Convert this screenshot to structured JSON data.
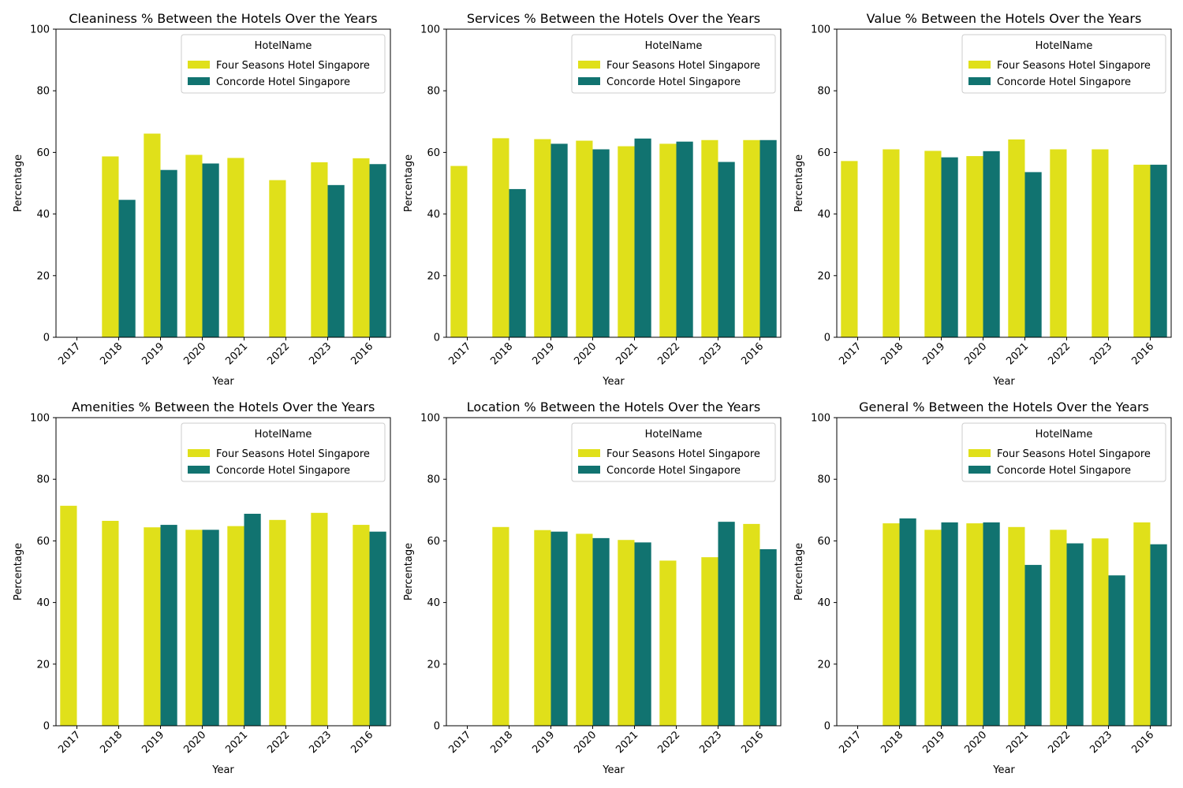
{
  "colors": {
    "four_seasons": "#e0e01a",
    "concorde": "#117370",
    "axis": "#000000",
    "legend_border": "#cccccc"
  },
  "chart_data": [
    {
      "type": "bar",
      "title": "Cleaniness % Between the Hotels Over the Years",
      "xlabel": "Year",
      "ylabel": "Percentage",
      "ylim": [
        0,
        100
      ],
      "yticks": [
        "0",
        "20",
        "40",
        "60",
        "80",
        "100"
      ],
      "categories": [
        "2017",
        "2018",
        "2019",
        "2020",
        "2021",
        "2022",
        "2023",
        "2016"
      ],
      "legend_title": "HotelName",
      "legend_position": "upper right",
      "grid": false,
      "series": [
        {
          "name": "Four Seasons Hotel Singapore",
          "color": "#e0e01a",
          "values": [
            null,
            58.7,
            66.1,
            59.2,
            58.2,
            51.0,
            56.8,
            58.1
          ]
        },
        {
          "name": "Concorde Hotel Singapore",
          "color": "#117370",
          "values": [
            null,
            44.6,
            54.3,
            56.4,
            null,
            null,
            49.4,
            56.2
          ]
        }
      ]
    },
    {
      "type": "bar",
      "title": "Services % Between the Hotels Over the Years",
      "xlabel": "Year",
      "ylabel": "Percentage",
      "ylim": [
        0,
        100
      ],
      "yticks": [
        "0",
        "20",
        "40",
        "60",
        "80",
        "100"
      ],
      "categories": [
        "2017",
        "2018",
        "2019",
        "2020",
        "2021",
        "2022",
        "2023",
        "2016"
      ],
      "legend_title": "HotelName",
      "legend_position": "upper right",
      "grid": false,
      "series": [
        {
          "name": "Four Seasons Hotel Singapore",
          "color": "#e0e01a",
          "values": [
            55.6,
            64.6,
            64.3,
            63.8,
            62.0,
            62.8,
            64.0,
            64.0
          ]
        },
        {
          "name": "Concorde Hotel Singapore",
          "color": "#117370",
          "values": [
            null,
            48.1,
            62.8,
            61.0,
            64.5,
            63.5,
            56.9,
            64.0
          ]
        }
      ]
    },
    {
      "type": "bar",
      "title": "Value % Between the Hotels Over the Years",
      "xlabel": "Year",
      "ylabel": "Percentage",
      "ylim": [
        0,
        100
      ],
      "yticks": [
        "0",
        "20",
        "40",
        "60",
        "80",
        "100"
      ],
      "categories": [
        "2017",
        "2018",
        "2019",
        "2020",
        "2021",
        "2022",
        "2023",
        "2016"
      ],
      "legend_title": "HotelName",
      "legend_position": "upper right",
      "grid": false,
      "series": [
        {
          "name": "Four Seasons Hotel Singapore",
          "color": "#e0e01a",
          "values": [
            57.2,
            61.0,
            60.5,
            58.8,
            64.2,
            61.0,
            61.0,
            56.0
          ]
        },
        {
          "name": "Concorde Hotel Singapore",
          "color": "#117370",
          "values": [
            null,
            null,
            58.4,
            60.4,
            53.6,
            null,
            null,
            56.0
          ]
        }
      ]
    },
    {
      "type": "bar",
      "title": "Amenities % Between the Hotels Over the Years",
      "xlabel": "Year",
      "ylabel": "Percentage",
      "ylim": [
        0,
        100
      ],
      "yticks": [
        "0",
        "20",
        "40",
        "60",
        "80",
        "100"
      ],
      "categories": [
        "2017",
        "2018",
        "2019",
        "2020",
        "2021",
        "2022",
        "2023",
        "2016"
      ],
      "legend_title": "HotelName",
      "legend_position": "upper right",
      "grid": false,
      "series": [
        {
          "name": "Four Seasons Hotel Singapore",
          "color": "#e0e01a",
          "values": [
            71.4,
            66.5,
            64.4,
            63.6,
            64.8,
            66.8,
            69.1,
            65.2
          ]
        },
        {
          "name": "Concorde Hotel Singapore",
          "color": "#117370",
          "values": [
            null,
            null,
            65.2,
            63.6,
            68.8,
            null,
            null,
            63.0
          ]
        }
      ]
    },
    {
      "type": "bar",
      "title": "Location % Between the Hotels Over the Years",
      "xlabel": "Year",
      "ylabel": "Percentage",
      "ylim": [
        0,
        100
      ],
      "yticks": [
        "0",
        "20",
        "40",
        "60",
        "80",
        "100"
      ],
      "categories": [
        "2017",
        "2018",
        "2019",
        "2020",
        "2021",
        "2022",
        "2023",
        "2016"
      ],
      "legend_title": "HotelName",
      "legend_position": "upper right",
      "grid": false,
      "series": [
        {
          "name": "Four Seasons Hotel Singapore",
          "color": "#e0e01a",
          "values": [
            null,
            64.5,
            63.5,
            62.3,
            60.3,
            53.6,
            54.7,
            65.5
          ]
        },
        {
          "name": "Concorde Hotel Singapore",
          "color": "#117370",
          "values": [
            null,
            null,
            63.0,
            60.9,
            59.5,
            null,
            66.2,
            57.3
          ]
        }
      ]
    },
    {
      "type": "bar",
      "title": "General % Between the Hotels Over the Years",
      "xlabel": "Year",
      "ylabel": "Percentage",
      "ylim": [
        0,
        100
      ],
      "yticks": [
        "0",
        "20",
        "40",
        "60",
        "80",
        "100"
      ],
      "categories": [
        "2017",
        "2018",
        "2019",
        "2020",
        "2021",
        "2022",
        "2023",
        "2016"
      ],
      "legend_title": "HotelName",
      "legend_position": "upper right",
      "grid": false,
      "series": [
        {
          "name": "Four Seasons Hotel Singapore",
          "color": "#e0e01a",
          "values": [
            null,
            65.7,
            63.6,
            65.7,
            64.5,
            63.6,
            60.8,
            66.0
          ]
        },
        {
          "name": "Concorde Hotel Singapore",
          "color": "#117370",
          "values": [
            null,
            67.3,
            66.0,
            66.0,
            52.2,
            59.2,
            48.8,
            58.9
          ]
        }
      ]
    }
  ]
}
